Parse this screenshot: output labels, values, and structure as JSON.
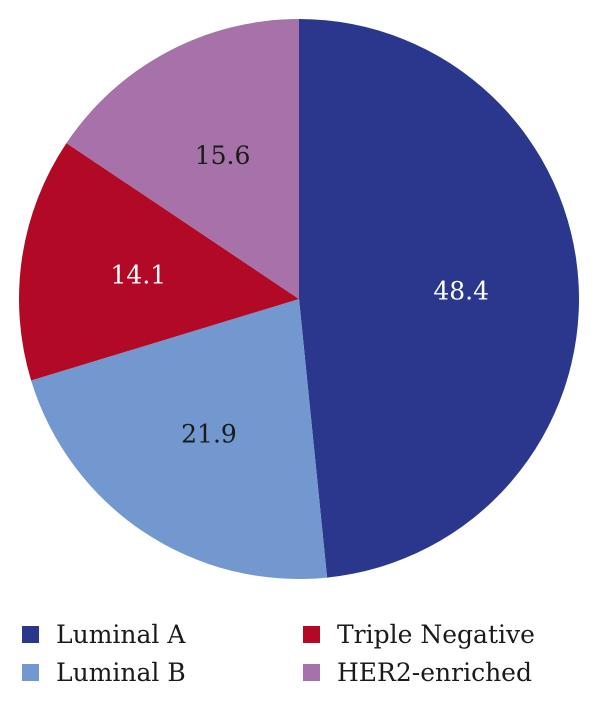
{
  "chart_data": {
    "type": "pie",
    "title": "",
    "slices": [
      {
        "name": "Luminal A",
        "value": 48.4,
        "label": "48.4",
        "color": "#2b378c",
        "label_color": "#ffffff"
      },
      {
        "name": "Luminal B",
        "value": 21.9,
        "label": "21.9",
        "color": "#7398d0",
        "label_color": "#1a1a1a"
      },
      {
        "name": "Triple Negative",
        "value": 14.1,
        "label": "14.1",
        "color": "#b20a26",
        "label_color": "#ffffff"
      },
      {
        "name": "HER2-enriched",
        "value": 15.6,
        "label": "15.6",
        "color": "#a672a9",
        "label_color": "#1a1a1a"
      }
    ],
    "start_angle": "12 o'clock",
    "direction": "clockwise",
    "legend_position": "bottom"
  },
  "legend": {
    "items": [
      {
        "label": "Luminal A",
        "color": "#2b378c"
      },
      {
        "label": "Luminal B",
        "color": "#7398d0"
      },
      {
        "label": "Triple Negative",
        "color": "#b20a26"
      },
      {
        "label": "HER2-enriched",
        "color": "#a672a9"
      }
    ]
  }
}
